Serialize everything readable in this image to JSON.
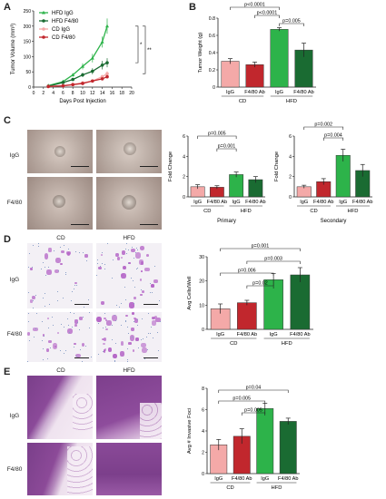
{
  "panels": {
    "A": {
      "letter": "A"
    },
    "B": {
      "letter": "B"
    },
    "C": {
      "letter": "C",
      "row_labels": [
        "IgG",
        "F4/80"
      ],
      "col_labels": [
        "CD",
        "HFD"
      ]
    },
    "D": {
      "letter": "D",
      "row_labels": [
        "IgG",
        "F4/80"
      ],
      "col_labels": [
        "CD",
        "HFD"
      ]
    },
    "E": {
      "letter": "E",
      "row_labels": [
        "IgG",
        "F4/80"
      ],
      "col_labels": [
        "CD",
        "HFD"
      ]
    }
  },
  "colors": {
    "cd_igg": "#f4a9a8",
    "cd_f480": "#c1272d",
    "hfd_igg": "#2db34a",
    "hfd_f480": "#1a6b32"
  },
  "chart_data": [
    {
      "id": "A",
      "type": "line",
      "xlabel": "Days Post Injection",
      "ylabel": "Tumor Volume (mm³)",
      "xlim": [
        0,
        20
      ],
      "ylim": [
        0,
        250
      ],
      "xticks": [
        0,
        2,
        4,
        6,
        8,
        10,
        12,
        14,
        16,
        18,
        20
      ],
      "yticks": [
        0,
        50,
        100,
        150,
        200,
        250
      ],
      "legend_position": "top-left",
      "series": [
        {
          "name": "HFD IgG",
          "color": "#2db34a",
          "x": [
            3,
            6,
            8,
            10,
            12,
            14,
            15
          ],
          "y": [
            5,
            18,
            40,
            68,
            95,
            148,
            200
          ],
          "err": [
            2,
            4,
            6,
            10,
            14,
            18,
            25
          ]
        },
        {
          "name": "HFD F4/80",
          "color": "#1a6b32",
          "x": [
            3,
            6,
            8,
            10,
            12,
            14,
            15
          ],
          "y": [
            3,
            15,
            25,
            40,
            52,
            72,
            80
          ],
          "err": [
            2,
            3,
            5,
            7,
            10,
            14,
            15
          ]
        },
        {
          "name": "CD IgG",
          "color": "#f4a9a8",
          "x": [
            3,
            6,
            8,
            10,
            12,
            14,
            15
          ],
          "y": [
            2,
            5,
            9,
            14,
            20,
            34,
            44
          ],
          "err": [
            1,
            2,
            2,
            3,
            4,
            6,
            8
          ]
        },
        {
          "name": "CD F4/80",
          "color": "#c1272d",
          "x": [
            3,
            6,
            8,
            10,
            12,
            14,
            15
          ],
          "y": [
            2,
            4,
            8,
            12,
            20,
            27,
            34
          ],
          "err": [
            1,
            1,
            2,
            3,
            3,
            4,
            5
          ]
        }
      ],
      "sig": [
        "*",
        "**"
      ]
    },
    {
      "id": "B",
      "type": "bar",
      "ylabel": "Tumor Weight (g)",
      "ylim": [
        0,
        0.8
      ],
      "yticks": [
        "0",
        "0.2",
        "0.4",
        "0.6",
        "0.8"
      ],
      "categories": [
        "IgG",
        "F4/80 Ab",
        "IgG",
        "F4/80 Ab"
      ],
      "groups": [
        "CD",
        "HFD"
      ],
      "values": [
        0.3,
        0.26,
        0.67,
        0.43
      ],
      "errors": [
        0.03,
        0.03,
        0.02,
        0.08
      ],
      "colors": [
        "#f4a9a8",
        "#c1272d",
        "#2db34a",
        "#1a6b32"
      ],
      "brackets": [
        {
          "from": 0,
          "to": 2,
          "label": "p<0.0001"
        },
        {
          "from": 1,
          "to": 2,
          "label": "p<0.0001"
        },
        {
          "from": 2,
          "to": 3,
          "label": "p=0.005"
        }
      ]
    },
    {
      "id": "C1",
      "type": "bar",
      "title": "Primary",
      "ylabel": "Fold Change",
      "ylim": [
        0,
        6
      ],
      "yticks": [
        "0",
        "2",
        "4",
        "6"
      ],
      "categories": [
        "IgG",
        "F4/80 Ab",
        "IgG",
        "F4/80 Ab"
      ],
      "groups": [
        "CD",
        "HFD"
      ],
      "values": [
        1.0,
        0.95,
        2.2,
        1.7
      ],
      "errors": [
        0.2,
        0.15,
        0.25,
        0.3
      ],
      "colors": [
        "#f4a9a8",
        "#c1272d",
        "#2db34a",
        "#1a6b32"
      ],
      "brackets": [
        {
          "from": 0,
          "to": 2,
          "label": "p=0.005"
        },
        {
          "from": 1,
          "to": 2,
          "label": "p=0.001"
        }
      ]
    },
    {
      "id": "C2",
      "type": "bar",
      "title": "Secondary",
      "ylabel": "Fold Change",
      "ylim": [
        0,
        6
      ],
      "yticks": [
        "0",
        "2",
        "4",
        "6"
      ],
      "categories": [
        "IgG",
        "F4/80 Ab",
        "IgG",
        "F4/80 Ab"
      ],
      "groups": [
        "CD",
        "HFD"
      ],
      "values": [
        1.0,
        1.5,
        4.1,
        2.6
      ],
      "errors": [
        0.15,
        0.3,
        0.6,
        0.6
      ],
      "colors": [
        "#f4a9a8",
        "#c1272d",
        "#2db34a",
        "#1a6b32"
      ],
      "brackets": [
        {
          "from": 0,
          "to": 2,
          "label": "p=0.002"
        },
        {
          "from": 1,
          "to": 2,
          "label": "p=0.004"
        }
      ]
    },
    {
      "id": "D",
      "type": "bar",
      "ylabel": "Avg Cells/Well",
      "ylim": [
        0,
        30
      ],
      "yticks": [
        "0",
        "10",
        "20",
        "30"
      ],
      "categories": [
        "IgG",
        "F4/80 Ab",
        "IgG",
        "F4/80 Ab"
      ],
      "groups": [
        "CD",
        "HFD"
      ],
      "values": [
        8.5,
        11,
        20.5,
        22.5
      ],
      "errors": [
        2,
        1,
        2.5,
        3
      ],
      "colors": [
        "#f4a9a8",
        "#c1272d",
        "#2db34a",
        "#1a6b32"
      ],
      "brackets": [
        {
          "from": 0,
          "to": 2,
          "label": "p=0.006"
        },
        {
          "from": 1,
          "to": 2,
          "label": "p=0.02"
        },
        {
          "from": 1,
          "to": 3,
          "label": "p=0.003"
        },
        {
          "from": 0,
          "to": 3,
          "label": "p=0.001"
        }
      ]
    },
    {
      "id": "E",
      "type": "bar",
      "ylabel": "Avg # Invasive Foci",
      "ylim": [
        0,
        8
      ],
      "yticks": [
        "0",
        "2",
        "4",
        "6",
        "8"
      ],
      "categories": [
        "IgG",
        "F4/80 Ab",
        "IgG",
        "F4/80 Ab"
      ],
      "groups": [
        "CD",
        "HFD"
      ],
      "values": [
        2.7,
        3.5,
        6.1,
        4.9
      ],
      "errors": [
        0.5,
        0.7,
        0.5,
        0.3
      ],
      "colors": [
        "#f4a9a8",
        "#c1272d",
        "#2db34a",
        "#1a6b32"
      ],
      "brackets": [
        {
          "from": 1,
          "to": 2,
          "label": "p=0.005"
        },
        {
          "from": 0,
          "to": 2,
          "label": "p=0.005"
        },
        {
          "from": 0,
          "to": 3,
          "label": "p=0.04"
        }
      ]
    }
  ]
}
